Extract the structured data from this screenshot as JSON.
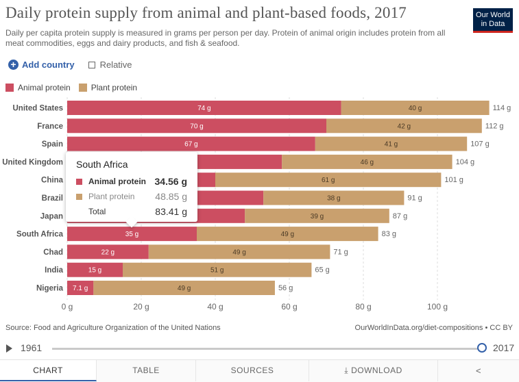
{
  "header": {
    "title": "Daily protein supply from animal and plant-based foods, 2017",
    "subtitle": "Daily per capita protein supply is measured in grams per person per day. Protein of animal origin includes protein from all meat commodities, eggs and dairy products, and fish & seafood.",
    "logo_line1": "Our World",
    "logo_line2": "in Data"
  },
  "controls": {
    "add_country": "Add country",
    "relative": "Relative"
  },
  "legend": [
    {
      "label": "Animal protein",
      "color": "#cc4e61"
    },
    {
      "label": "Plant protein",
      "color": "#c9a06e"
    }
  ],
  "chart_data": {
    "type": "bar",
    "orientation": "horizontal",
    "stacked": true,
    "unit": "g",
    "categories": [
      "United States",
      "France",
      "Spain",
      "United Kingdom",
      "China",
      "Brazil",
      "Japan",
      "South Africa",
      "Chad",
      "India",
      "Nigeria"
    ],
    "series": [
      {
        "name": "Animal protein",
        "color": "#cc4e61",
        "values": [
          74,
          70,
          67,
          58,
          40,
          53,
          48,
          35,
          22,
          15,
          7.1
        ],
        "labels": [
          "74 g",
          "70 g",
          "67 g",
          "",
          "",
          "",
          "",
          "35 g",
          "22 g",
          "15 g",
          "7.1 g"
        ]
      },
      {
        "name": "Plant protein",
        "color": "#c9a06e",
        "values": [
          40,
          42,
          41,
          46,
          61,
          38,
          39,
          49,
          49,
          51,
          49
        ],
        "labels": [
          "40 g",
          "42 g",
          "41 g",
          "46 g",
          "61 g",
          "38 g",
          "39 g",
          "49 g",
          "49 g",
          "51 g",
          "49 g"
        ]
      }
    ],
    "totals": [
      "114 g",
      "112 g",
      "107 g",
      "104 g",
      "101 g",
      "91 g",
      "87 g",
      "83 g",
      "71 g",
      "65 g",
      "56 g"
    ],
    "xlim": [
      0,
      115
    ],
    "xticks": [
      0,
      20,
      40,
      60,
      80,
      100
    ],
    "xtick_labels": [
      "0 g",
      "20 g",
      "40 g",
      "60 g",
      "80 g",
      "100 g"
    ],
    "grid": "vertical dashed",
    "highlighted": "South Africa"
  },
  "tooltip": {
    "title": "South Africa",
    "rows": [
      {
        "label": "Animal protein",
        "value": "34.56 g",
        "color": "#cc4e61"
      },
      {
        "label": "Plant protein",
        "value": "48.85 g",
        "color": "#c9a06e"
      },
      {
        "label": "Total",
        "value": "83.41 g"
      }
    ]
  },
  "footer": {
    "source": "Source: Food and Agriculture Organization of the United Nations",
    "credit": "OurWorldInData.org/diet-compositions • CC BY"
  },
  "timeline": {
    "start_year": "1961",
    "end_year": "2017"
  },
  "tabs": {
    "chart": "CHART",
    "table": "TABLE",
    "sources": "SOURCES",
    "download": "DOWNLOAD"
  }
}
